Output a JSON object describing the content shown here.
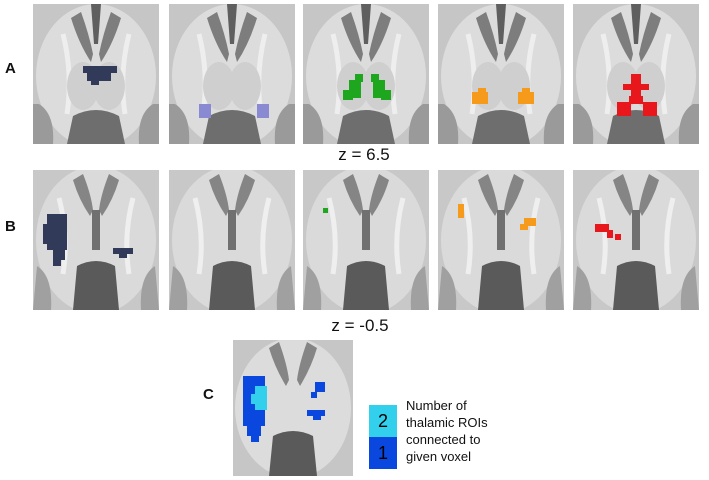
{
  "rows": {
    "a": {
      "label": "A"
    },
    "b": {
      "label": "B"
    },
    "c": {
      "label": "C"
    }
  },
  "slice_labels": {
    "row_a": "z = 6.5",
    "row_b": "z = -0.5"
  },
  "colors": {
    "roi_1": "#323a5a",
    "roi_2": "#8a8ad2",
    "roi_3": "#1fa61f",
    "roi_4": "#f59a1b",
    "roi_5": "#e8171b",
    "count_2": "#33d0ee",
    "count_1": "#0a47df"
  },
  "legend": {
    "items": [
      {
        "value": "2",
        "color": "#33d0ee"
      },
      {
        "value": "1",
        "color": "#0a47df"
      }
    ],
    "description_lines": [
      "Number of",
      "thalamic ROIs",
      "connected to",
      "given voxel"
    ]
  }
}
